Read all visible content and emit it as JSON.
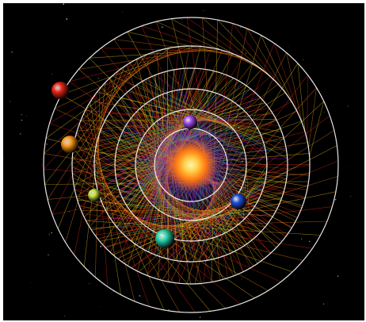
{
  "scene": {
    "background": "#000000",
    "orbit_color": "#ffffff",
    "star_color": "#ff8a1c",
    "pattern_colors": [
      "#ff2a1a",
      "#ff8c1a",
      "#ffd21a",
      "#9ee21a",
      "#1ad2a0",
      "#1a8cff",
      "#b41aff"
    ],
    "planets": [
      {
        "name": "purple-planet",
        "color": "#a24cf0",
        "orbit": 1
      },
      {
        "name": "blue-planet",
        "color": "#1f4fd8",
        "orbit": 2
      },
      {
        "name": "teal-planet",
        "color": "#2bd6b0",
        "orbit": 3
      },
      {
        "name": "yellow-green-planet",
        "color": "#c8e53a",
        "orbit": 4
      },
      {
        "name": "orange-planet",
        "color": "#ff9a18",
        "orbit": 5
      },
      {
        "name": "red-planet",
        "color": "#e8261a",
        "orbit": 6
      }
    ]
  }
}
